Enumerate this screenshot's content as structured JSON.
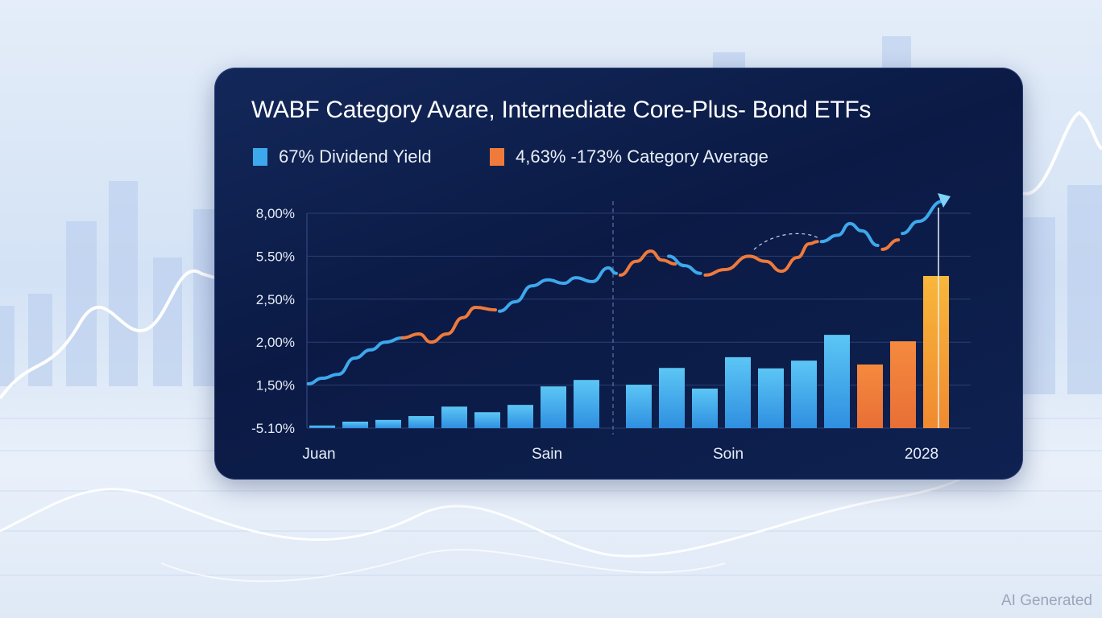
{
  "chart_data": {
    "type": "bar+line",
    "title": "WABF Category Avare, Internediate Core-Plus- Bond ETFs",
    "legend": [
      {
        "label": "67% Dividend Yield",
        "color": "#3ea8ec"
      },
      {
        "label": "4,63% -173% Category Average",
        "color": "#ee7a3c"
      }
    ],
    "legend_position": "top-left",
    "y_ticks": [
      "-5.10%",
      "1,50%",
      "2,00%",
      "2,50%",
      "5.50%",
      "8,00%"
    ],
    "x_labels": [
      "Juan",
      "Sain",
      "Soin",
      "2028"
    ],
    "grid": true,
    "bars": {
      "values": [
        0.06,
        0.15,
        0.19,
        0.28,
        0.5,
        0.37,
        0.54,
        0.97,
        1.12,
        1.01,
        1.4,
        0.92,
        1.65,
        1.39,
        1.57,
        2.17,
        1.48,
        2.02,
        3.54
      ],
      "series": [
        "blue",
        "blue",
        "blue",
        "blue",
        "blue",
        "blue",
        "blue",
        "blue",
        "blue",
        "blue",
        "blue",
        "blue",
        "blue",
        "blue",
        "blue",
        "blue",
        "orange",
        "orange",
        "highlight"
      ],
      "unit_note": "values in y-tick index units (0 = first tick, 5 = last tick)"
    },
    "line_segments": [
      {
        "series": "blue",
        "points": [
          [
            0.2,
            1.03
          ],
          [
            2.3,
            1.16
          ],
          [
            4.7,
            1.25
          ],
          [
            7.2,
            1.63
          ],
          [
            9.6,
            1.82
          ],
          [
            11.8,
            2.0
          ],
          [
            14.4,
            2.1
          ]
        ]
      },
      {
        "series": "orange",
        "points": [
          [
            14.4,
            2.1
          ],
          [
            16.9,
            2.19
          ],
          [
            18.7,
            2.0
          ],
          [
            21.1,
            2.19
          ],
          [
            23.5,
            2.57
          ],
          [
            25.4,
            2.81
          ],
          [
            28.4,
            2.75
          ]
        ]
      },
      {
        "series": "blue",
        "points": [
          [
            29.0,
            2.72
          ],
          [
            31.4,
            2.94
          ],
          [
            33.9,
            3.31
          ],
          [
            36.3,
            3.45
          ],
          [
            38.7,
            3.37
          ],
          [
            40.5,
            3.5
          ],
          [
            43.0,
            3.41
          ],
          [
            45.4,
            3.73
          ],
          [
            46.6,
            3.6
          ]
        ]
      },
      {
        "series": "orange",
        "points": [
          [
            47.2,
            3.56
          ],
          [
            49.6,
            3.88
          ],
          [
            51.8,
            4.12
          ],
          [
            53.5,
            3.91
          ],
          [
            55.5,
            3.82
          ]
        ]
      },
      {
        "series": "blue",
        "points": [
          [
            54.5,
            4.0
          ],
          [
            56.9,
            3.78
          ],
          [
            59.3,
            3.6
          ]
        ]
      },
      {
        "series": "orange",
        "points": [
          [
            60.0,
            3.56
          ],
          [
            63.0,
            3.69
          ],
          [
            66.6,
            4.0
          ],
          [
            69.1,
            3.88
          ],
          [
            71.5,
            3.65
          ],
          [
            73.9,
            3.97
          ],
          [
            75.7,
            4.29
          ],
          [
            76.9,
            4.34
          ]
        ]
      },
      {
        "series": "blue",
        "points": [
          [
            77.5,
            4.34
          ],
          [
            80.0,
            4.49
          ],
          [
            81.8,
            4.76
          ],
          [
            83.6,
            4.59
          ],
          [
            86.0,
            4.25
          ]
        ]
      },
      {
        "series": "orange",
        "points": [
          [
            86.7,
            4.16
          ],
          [
            89.1,
            4.38
          ]
        ]
      },
      {
        "series": "blue",
        "points": [
          [
            89.7,
            4.53
          ],
          [
            92.1,
            4.81
          ],
          [
            95.8,
            5.28
          ]
        ]
      }
    ],
    "colors": {
      "blue": "#3ea8ec",
      "orange": "#ee7a3c",
      "highlight": "#f7a83a",
      "grid": "#2a3f72",
      "text": "#e8eef8"
    }
  },
  "watermark": "AI Generated"
}
